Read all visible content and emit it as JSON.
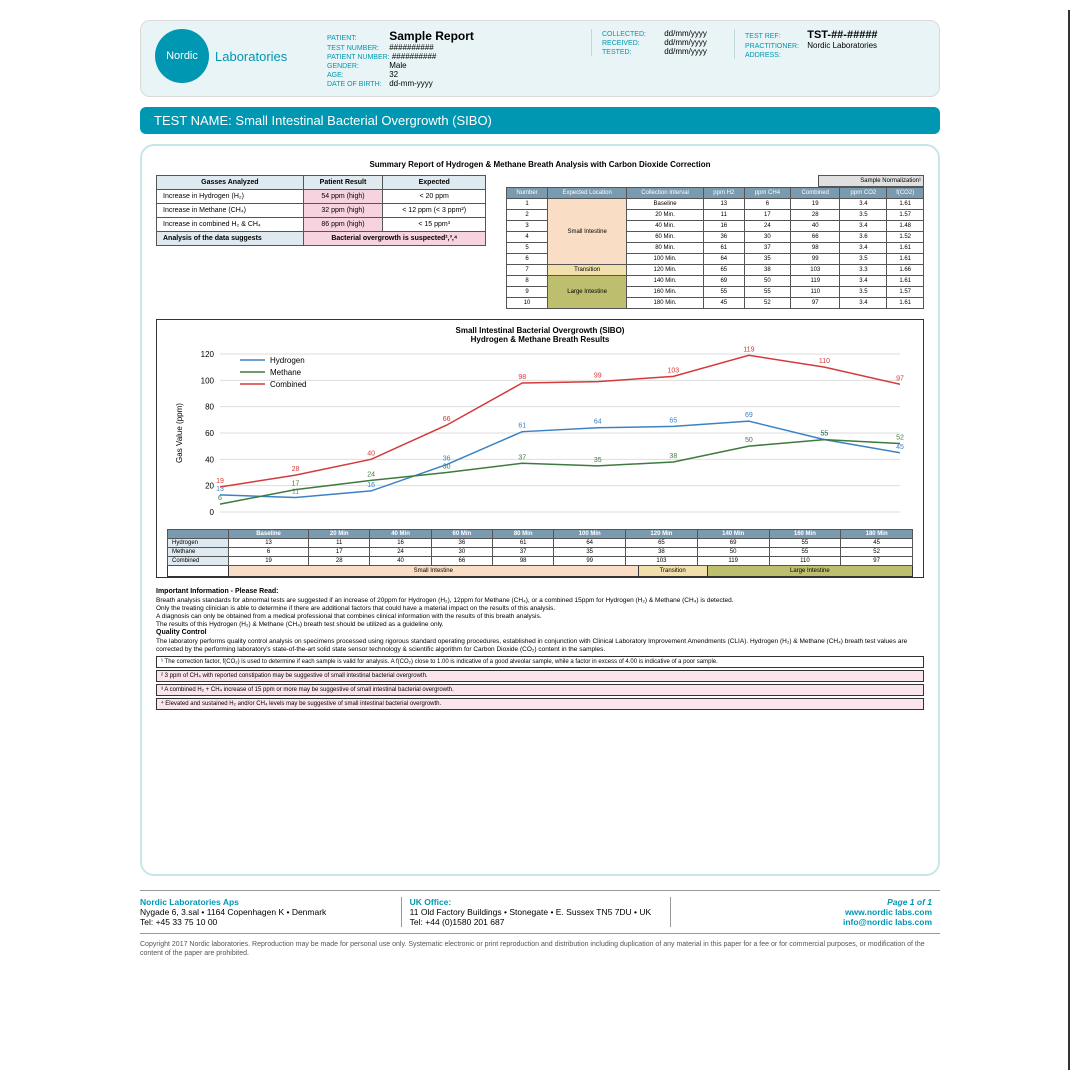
{
  "logo": {
    "circle_text": "Nordic",
    "word": "Laboratories",
    "brand_color": "#0097b2"
  },
  "header": {
    "patient_label": "PATIENT:",
    "patient_value": "Sample Report",
    "testref_label": "TEST REF:",
    "testref_value": "TST-##-#####",
    "block1": [
      {
        "l": "TEST NUMBER:",
        "v": "##########"
      },
      {
        "l": "PATIENT NUMBER:",
        "v": "##########"
      },
      {
        "l": "GENDER:",
        "v": "Male"
      },
      {
        "l": "AGE:",
        "v": "32"
      },
      {
        "l": "DATE OF BIRTH:",
        "v": "dd-mm-yyyy"
      }
    ],
    "block2": [
      {
        "l": "COLLECTED:",
        "v": "dd/mm/yyyy"
      },
      {
        "l": "RECEIVED:",
        "v": "dd/mm/yyyy"
      },
      {
        "l": "TESTED:",
        "v": "dd/mm/yyyy"
      }
    ],
    "block3": [
      {
        "l": "PRACTITIONER:",
        "v": "Nordic Laboratories"
      },
      {
        "l": "ADDRESS:",
        "v": ""
      }
    ]
  },
  "test_name": {
    "label": "TEST NAME:",
    "value": "Small Intestinal Bacterial Overgrowth (SIBO)"
  },
  "summary": {
    "title": "Summary Report of Hydrogen & Methane Breath Analysis with Carbon Dioxide Correction",
    "cols": [
      "Gasses Analyzed",
      "Patient Result",
      "Expected"
    ],
    "rows": [
      {
        "g": "Increase in Hydrogen (H₂)",
        "r": "54 ppm (high)",
        "e": "< 20 ppm"
      },
      {
        "g": "Increase in Methane (CH₄)",
        "r": "32 ppm (high)",
        "e": "< 12 ppm (< 3 ppm²)"
      },
      {
        "g": "Increase in combined H₂ & CH₄",
        "r": "86 ppm (high)",
        "e": "< 15 ppm³"
      }
    ],
    "suggest_l": "Analysis of the data suggests",
    "suggest_r": "Bacterial overgrowth is suspected²,³,⁴"
  },
  "data_table": {
    "norm_label": "Sample Normalization¹",
    "cols": [
      "Number",
      "Expected Location",
      "Collection Interval",
      "ppm H2",
      "ppm CH4",
      "Combined",
      "ppm CO2",
      "f(CO2)"
    ],
    "rows": [
      {
        "n": "1",
        "loc": "Small Intestine",
        "locspan": 6,
        "int": "Baseline",
        "h2": 13,
        "ch4": 6,
        "c": 19,
        "co2": 3.4,
        "f": 1.61
      },
      {
        "n": "2",
        "int": "20 Min.",
        "h2": 11,
        "ch4": 17,
        "c": 28,
        "co2": 3.5,
        "f": 1.57
      },
      {
        "n": "3",
        "int": "40 Min.",
        "h2": 16,
        "ch4": 24,
        "c": 40,
        "co2": 3.4,
        "f": 1.48
      },
      {
        "n": "4",
        "int": "60 Min.",
        "h2": 36,
        "ch4": 30,
        "c": 66,
        "co2": 3.6,
        "f": 1.52
      },
      {
        "n": "5",
        "int": "80 Min.",
        "h2": 61,
        "ch4": 37,
        "c": 98,
        "co2": 3.4,
        "f": 1.61
      },
      {
        "n": "6",
        "int": "100 Min.",
        "h2": 64,
        "ch4": 35,
        "c": 99,
        "co2": 3.5,
        "f": 1.61
      },
      {
        "n": "7",
        "loc": "Transition",
        "locspan": 1,
        "int": "120 Min.",
        "h2": 65,
        "ch4": 38,
        "c": 103,
        "co2": 3.3,
        "f": 1.66
      },
      {
        "n": "8",
        "loc": "Large Intestine",
        "locspan": 3,
        "int": "140 Min.",
        "h2": 69,
        "ch4": 50,
        "c": 119,
        "co2": 3.4,
        "f": 1.61
      },
      {
        "n": "9",
        "int": "160 Min.",
        "h2": 55,
        "ch4": 55,
        "c": 110,
        "co2": 3.5,
        "f": 1.57
      },
      {
        "n": "10",
        "int": "180 Min.",
        "h2": 45,
        "ch4": 52,
        "c": 97,
        "co2": 3.4,
        "f": 1.61
      }
    ]
  },
  "chart": {
    "title1": "Small Intestinal Bacterial Overgrowth (SIBO)",
    "title2": "Hydrogen & Methane Breath Results",
    "ylabel": "Gas Value (ppm)",
    "yticks": [
      0,
      20,
      40,
      60,
      80,
      100,
      120
    ],
    "xlabels": [
      "Baseline",
      "20 Min",
      "40 Min",
      "60 Min",
      "80 Min",
      "100 Min",
      "120 Min",
      "140 Min",
      "160 Min",
      "180 Min"
    ],
    "series": [
      {
        "name": "Hydrogen",
        "color": "#3b82c4",
        "values": [
          13,
          11,
          16,
          36,
          61,
          64,
          65,
          69,
          55,
          45
        ]
      },
      {
        "name": "Methane",
        "color": "#3d7a3d",
        "values": [
          6,
          17,
          24,
          30,
          37,
          35,
          38,
          50,
          55,
          52
        ]
      },
      {
        "name": "Combined",
        "color": "#d43a3a",
        "values": [
          19,
          28,
          40,
          66,
          98,
          99,
          103,
          119,
          110,
          97
        ]
      }
    ],
    "table_rows": [
      "Hydrogen",
      "Methane",
      "Combined"
    ],
    "regions": [
      {
        "label": "Small Intestine",
        "span": 6,
        "bg": "#f9ddc5"
      },
      {
        "label": "Transition",
        "span": 1,
        "bg": "#f2e0ac"
      },
      {
        "label": "Large Intestine",
        "span": 3,
        "bg": "#bdbf6f"
      }
    ]
  },
  "notes": {
    "important_title": "Important Information - Please Read:",
    "important_lines": [
      "Breath analysis standards for abnormal tests are suggested if an increase of 20ppm for Hydrogen (H₂), 12ppm for Methane (CH₄), or a combined 15ppm for Hydrogen (H₂) & Methane (CH₄) is detected.",
      "Only the treating clinician is able to determine if there are additional factors that could have a material impact on the results of this analysis.",
      "A diagnosis can only be obtained from a medical professional that combines clinical information with the results of this breath analysis.",
      "The results of this Hydrogen (H₂) & Methane (CH₄) breath test should be utilized as a guideline only."
    ],
    "qc_title": "Quality Control",
    "qc_text": "The laboratory performs quality control analysis on specimens processed using rigorous standard operating procedures, established in conjunction with Clinical Laboratory Improvement Amendments (CLIA). Hydrogen (H₂) & Methane (CH₄) breath test values are corrected by the performing laboratory's state-of-the-art solid state sensor technology & scientific algorithm for Carbon Dioxide (CO₂) content in the samples.",
    "foot1": "¹ The correction factor, f(CO₂) is used to determine if each sample is valid for analysis. A f(CO₂) close to 1.00 is indicative of a good alveolar sample, while a factor in excess of 4.00 is indicative of a poor sample.",
    "foot2": "² 3 ppm of CH₄ with reported constipation may be suggestive of small intestinal bacterial overgrowth.",
    "foot3": "³ A combined H₂ + CH₄ increase of 15 ppm or more may be suggestive of small intestinal bacterial overgrowth.",
    "foot4": "⁴ Elevated and sustained H₂ and/or CH₄ levels may be suggestive of small intestinal bacterial overgrowth."
  },
  "footer": {
    "company": "Nordic Laboratories Aps",
    "addr1": "Nygade 6, 3.sal • 1164 Copenhagen K • Denmark",
    "tel1": "Tel: +45 33 75 10 00",
    "uk_title": "UK Office:",
    "addr2": "11 Old Factory Buildings • Stonegate • E. Sussex TN5 7DU • UK",
    "tel2": "Tel: +44 (0)1580 201 687",
    "page": "Page 1 of 1",
    "web": "www.nordic labs.com",
    "email": "info@nordic labs.com",
    "copyright": "Copyright 2017 Nordic laboratories. Reproduction may be made for personal use only. Systematic electronic or print reproduction and distribution including duplication of any material in this paper for a fee or for commercial purposes, or modification of the content of the paper are prohibited."
  }
}
